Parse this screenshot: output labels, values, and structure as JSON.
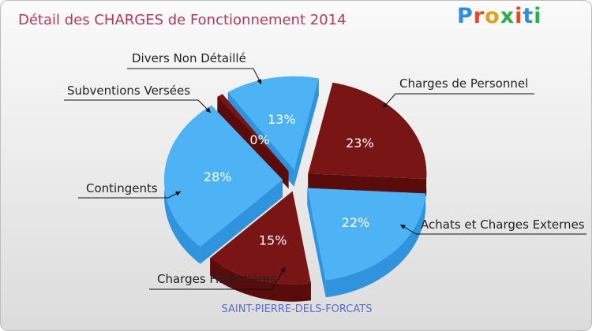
{
  "header": {
    "title": "Détail des CHARGES de Fonctionnement 2014",
    "logo_text": "Proxiti",
    "logo_colors": [
      "#2b8fe0",
      "#e04a2b",
      "#e0a21d",
      "#2bb04a",
      "#e04a2b",
      "#2b8fe0",
      "#2bb04a"
    ]
  },
  "footer": {
    "commune": "SAINT-PIERRE-DELS-FORCATS"
  },
  "colors": {
    "blue_top": "#4db3f4",
    "blue_side": "#2f93dd",
    "red_top": "#7a1515",
    "red_side": "#5a0c0c",
    "label_text": "#222222",
    "pct_text": "#ffffff"
  },
  "chart_data": {
    "type": "pie",
    "style": "3d-exploded",
    "title": "Détail des CHARGES de Fonctionnement 2014",
    "categories": [
      "Charges de Personnel",
      "Achats et Charges Externes",
      "Charges Financières",
      "Contingents",
      "Subventions Versées",
      "Divers Non Détaillé"
    ],
    "values": [
      23,
      22,
      15,
      28,
      0,
      13
    ],
    "labels": [
      "23%",
      "22%",
      "15%",
      "28%",
      "0%",
      "13%"
    ],
    "slice_colors": [
      "red",
      "blue",
      "red",
      "blue",
      "red",
      "blue"
    ]
  }
}
